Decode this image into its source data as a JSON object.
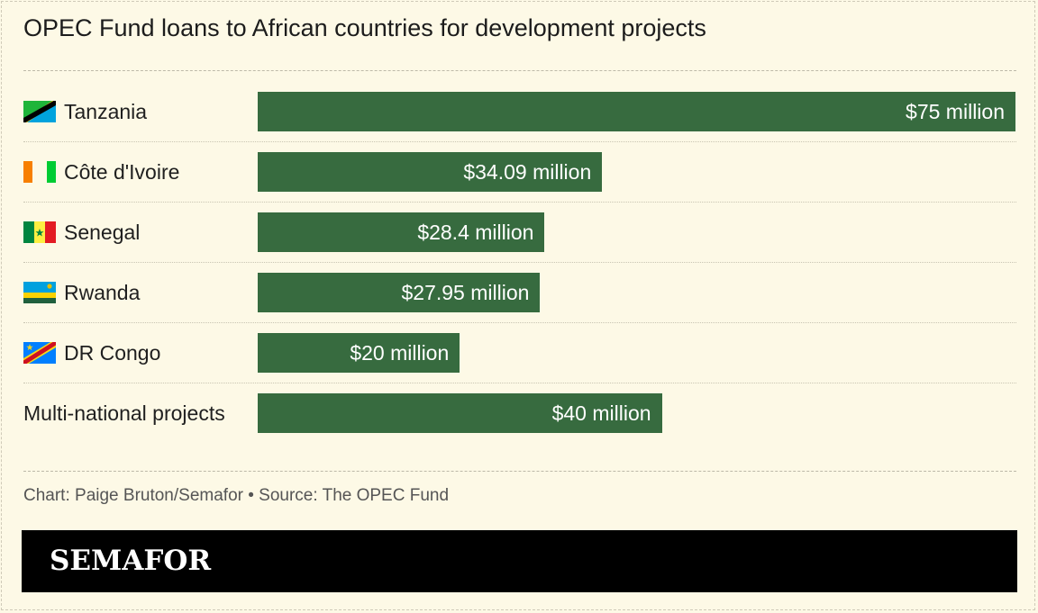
{
  "title": "OPEC Fund loans to African countries for development projects",
  "credit": "Chart: Paige Bruton/Semafor • Source: The OPEC Fund",
  "brand": "SEMAFOR",
  "colors": {
    "bar": "#376b3f",
    "background": "#fdf9e6",
    "footer": "#000000"
  },
  "chart_data": {
    "type": "bar",
    "orientation": "horizontal",
    "categories": [
      "Tanzania",
      "Côte d'Ivoire",
      "Senegal",
      "Rwanda",
      "DR Congo",
      "Multi-national projects"
    ],
    "values": [
      75,
      34.09,
      28.4,
      27.95,
      20,
      40
    ],
    "value_labels": [
      "$75 million",
      "$34.09 million",
      "$28.4 million",
      "$27.95 million",
      "$20 million",
      "$40 million"
    ],
    "flags": [
      "tanzania-flag-icon",
      "cote-divoire-flag-icon",
      "senegal-flag-icon",
      "rwanda-flag-icon",
      "dr-congo-flag-icon",
      null
    ],
    "xlim": [
      0,
      75
    ],
    "grid": false,
    "legend": "none"
  }
}
